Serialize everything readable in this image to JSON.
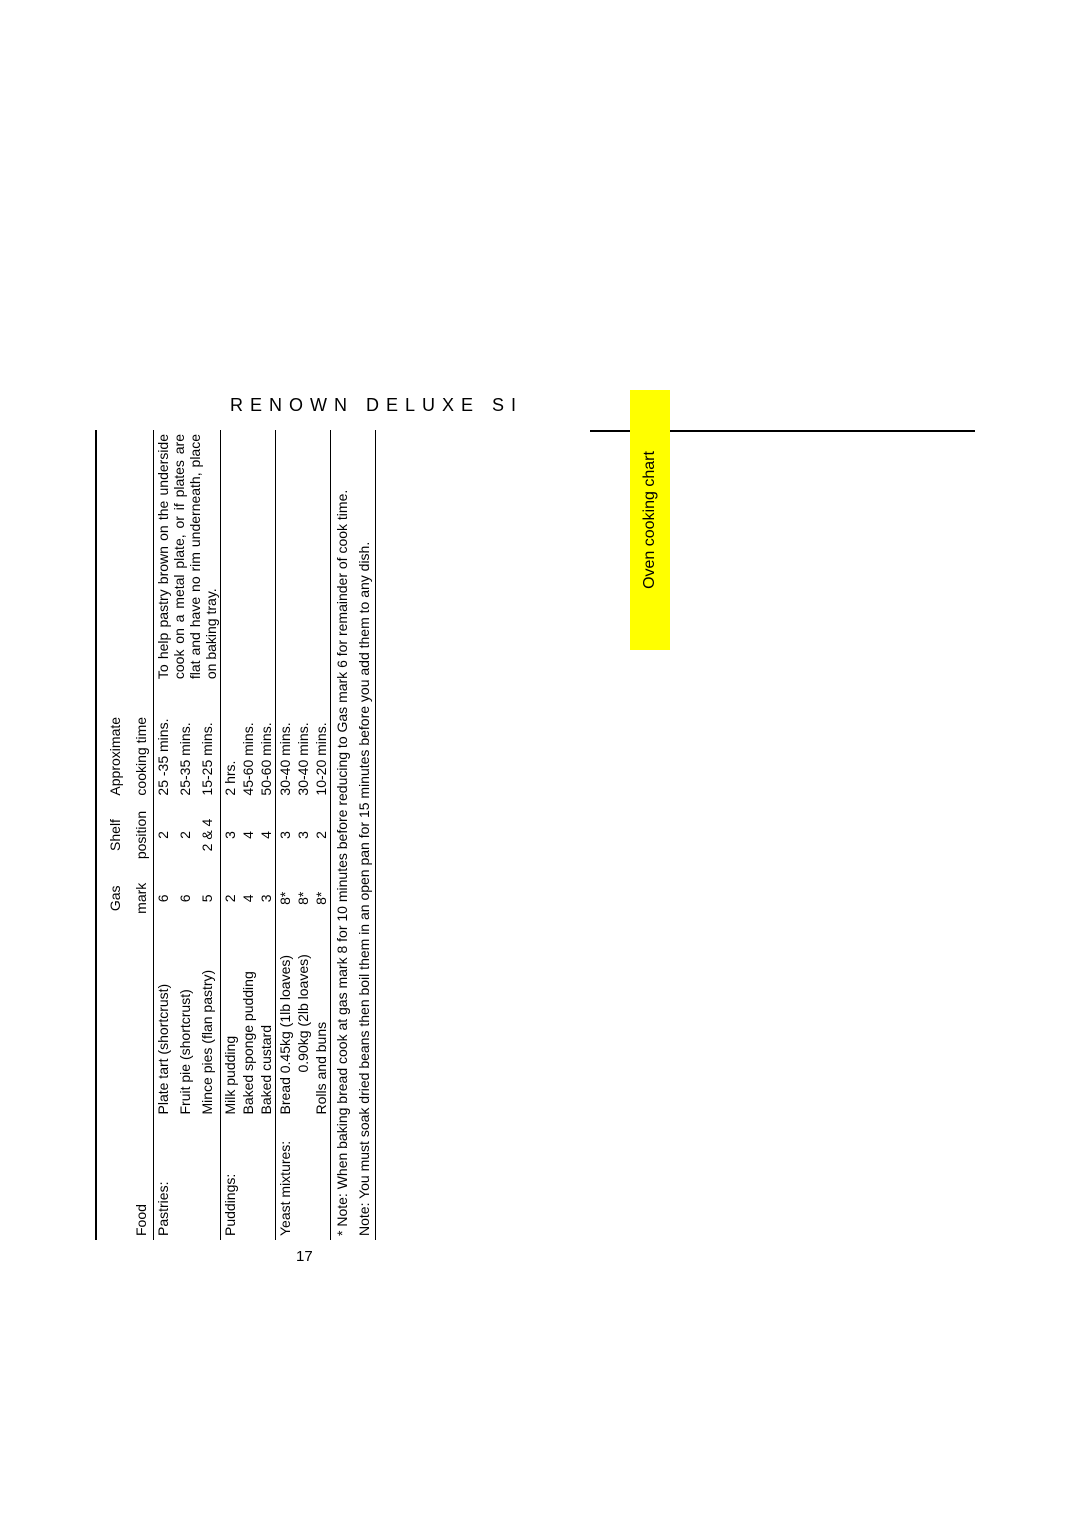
{
  "header": "RENOWN DELUXE SI",
  "page_number": "17",
  "tab_label": "Oven cooking chart",
  "columns": {
    "food": "Food",
    "item": "",
    "gas1": "Gas",
    "gas2": "mark",
    "shelf1": "Shelf",
    "shelf2": "position",
    "time1": "Approximate",
    "time2": "cooking time",
    "note": ""
  },
  "sections": [
    {
      "label": "Pastries:",
      "note": "To help pastry brown on the underside cook on a metal plate, or if plates are flat and have no rim underneath, place on baking tray.",
      "rows": [
        {
          "item": "Plate tart (shortcrust)",
          "gas": "6",
          "shelf": "2",
          "time": "25 -35 mins."
        },
        {
          "item": "Fruit pie (shortcrust)",
          "gas": "6",
          "shelf": "2",
          "time": "25-35 mins."
        },
        {
          "item": "Mince pies (flan pastry)",
          "gas": "5",
          "shelf": "2 & 4",
          "time": "15-25 mins."
        }
      ]
    },
    {
      "label": "Puddings:",
      "note": "",
      "rows": [
        {
          "item": "Milk pudding",
          "gas": "2",
          "shelf": "3",
          "time": "2 hrs."
        },
        {
          "item": "Baked sponge pudding",
          "gas": "4",
          "shelf": "4",
          "time": "45-60 mins."
        },
        {
          "item": "Baked custard",
          "gas": "3",
          "shelf": "4",
          "time": "50-60 mins."
        }
      ]
    },
    {
      "label": "Yeast mixtures:",
      "note": "",
      "rows": [
        {
          "item": "Bread 0.45kg (1lb loaves)",
          "gas": "8*",
          "shelf": "3",
          "time": "30-40 mins."
        },
        {
          "item": "0.90kg (2lb loaves)",
          "indent": true,
          "gas": "8*",
          "shelf": "3",
          "time": "30-40 mins."
        },
        {
          "item": "Rolls and buns",
          "gas": "8*",
          "shelf": "2",
          "time": "10-20 mins."
        }
      ]
    }
  ],
  "footnotes": [
    "* Note: When baking bread cook at gas mark 8 for 10 minutes before reducing to Gas mark 6 for remainder of cook time.",
    "Note: You must soak dried beans then boil them in an open pan for 15 minutes before you add them to any dish."
  ]
}
